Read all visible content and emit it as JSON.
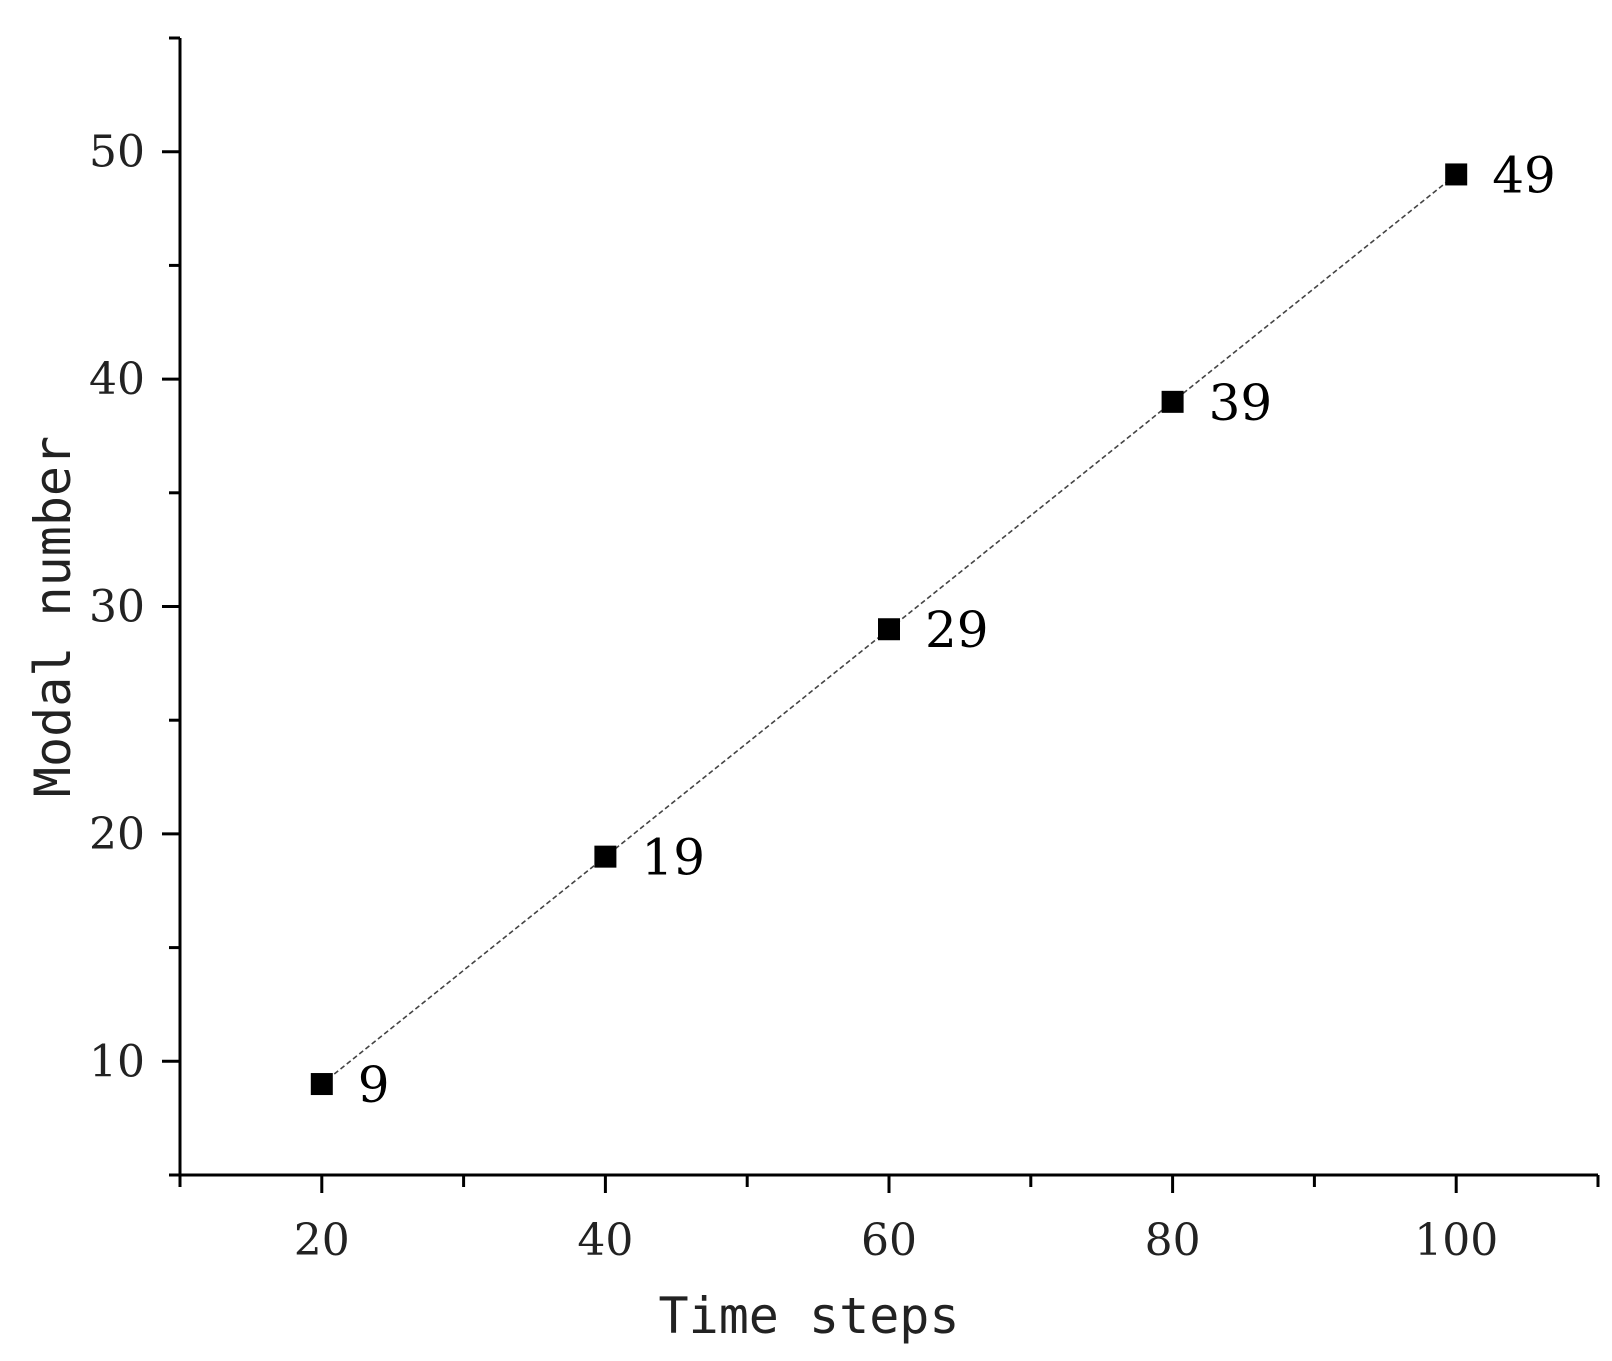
{
  "chart_data": {
    "type": "line",
    "title": "",
    "xlabel": "Time steps",
    "ylabel": "Modal number",
    "xlim": [
      10,
      110
    ],
    "ylim": [
      5,
      55
    ],
    "x_ticks_major": [
      20,
      40,
      60,
      80,
      100
    ],
    "x_ticks_minor": [
      10,
      30,
      50,
      70,
      90,
      110
    ],
    "y_ticks_major": [
      10,
      20,
      30,
      40,
      50
    ],
    "y_ticks_minor": [
      5,
      15,
      25,
      35,
      45,
      55
    ],
    "grid": false,
    "marker": "square",
    "line_style": "dashed",
    "series": [
      {
        "x": [
          20,
          40,
          60,
          80,
          100
        ],
        "values": [
          9,
          19,
          29,
          39,
          49
        ],
        "labels": [
          "9",
          "19",
          "29",
          "39",
          "49"
        ]
      }
    ]
  }
}
